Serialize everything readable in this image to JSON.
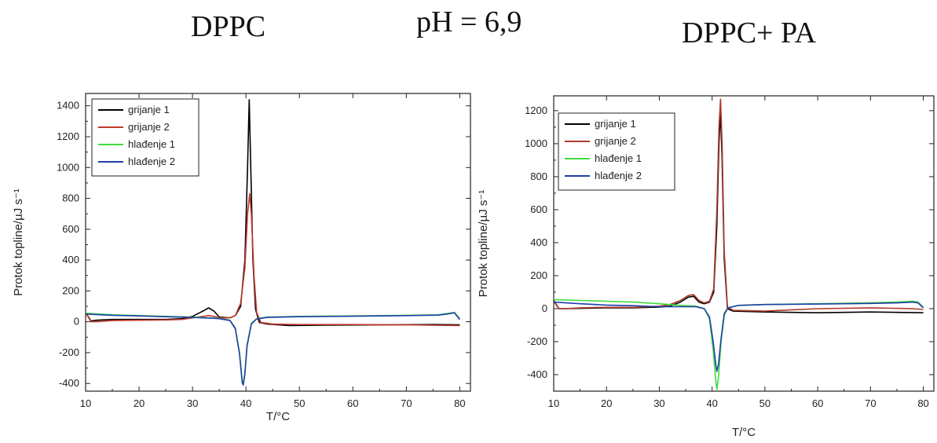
{
  "headings": {
    "left": "DPPC",
    "center": "pH = 6,9",
    "right": "DPPC+ PA"
  },
  "chart_data": [
    {
      "type": "line",
      "xlabel": "T/°C",
      "ylabel": "Protok topline/µJ s⁻¹",
      "xlim": [
        10,
        82
      ],
      "ylim": [
        -450,
        1480
      ],
      "xticks": [
        10,
        20,
        30,
        40,
        50,
        60,
        70,
        80
      ],
      "yticks": [
        -400,
        -200,
        0,
        200,
        400,
        600,
        800,
        1000,
        1200,
        1400
      ],
      "legend": "top-left",
      "series": [
        {
          "name": "grijanje 1",
          "color": "#000000",
          "points": [
            [
              10,
              60
            ],
            [
              11,
              5
            ],
            [
              12,
              10
            ],
            [
              15,
              15
            ],
            [
              20,
              15
            ],
            [
              25,
              15
            ],
            [
              28,
              20
            ],
            [
              30,
              35
            ],
            [
              32,
              70
            ],
            [
              33,
              90
            ],
            [
              34,
              70
            ],
            [
              35,
              30
            ],
            [
              37,
              25
            ],
            [
              38,
              40
            ],
            [
              39,
              100
            ],
            [
              39.8,
              400
            ],
            [
              40.3,
              1000
            ],
            [
              40.6,
              1440
            ],
            [
              40.9,
              1000
            ],
            [
              41.3,
              400
            ],
            [
              41.8,
              80
            ],
            [
              42.5,
              -5
            ],
            [
              44,
              -15
            ],
            [
              48,
              -25
            ],
            [
              55,
              -22
            ],
            [
              65,
              -20
            ],
            [
              75,
              -18
            ],
            [
              80,
              -20
            ]
          ]
        },
        {
          "name": "grijanje 2",
          "color": "#c0392b",
          "points": [
            [
              10,
              60
            ],
            [
              11,
              0
            ],
            [
              12,
              0
            ],
            [
              15,
              8
            ],
            [
              20,
              10
            ],
            [
              25,
              12
            ],
            [
              28,
              15
            ],
            [
              30,
              25
            ],
            [
              32,
              35
            ],
            [
              33,
              40
            ],
            [
              34,
              35
            ],
            [
              35,
              25
            ],
            [
              37,
              25
            ],
            [
              38,
              40
            ],
            [
              39,
              120
            ],
            [
              39.8,
              350
            ],
            [
              40.3,
              700
            ],
            [
              40.7,
              830
            ],
            [
              41,
              700
            ],
            [
              41.5,
              300
            ],
            [
              42,
              60
            ],
            [
              42.8,
              -5
            ],
            [
              45,
              -15
            ],
            [
              50,
              -18
            ],
            [
              60,
              -18
            ],
            [
              70,
              -20
            ],
            [
              80,
              -25
            ]
          ]
        },
        {
          "name": "hlađenje 1",
          "color": "#3ddc3d",
          "points": [
            [
              10,
              55
            ],
            [
              15,
              45
            ],
            [
              20,
              40
            ],
            [
              25,
              35
            ],
            [
              30,
              30
            ],
            [
              33,
              25
            ],
            [
              35,
              22
            ],
            [
              37,
              10
            ],
            [
              38,
              -40
            ],
            [
              38.8,
              -200
            ],
            [
              39.3,
              -380
            ],
            [
              39.5,
              -400
            ],
            [
              39.8,
              -330
            ],
            [
              40.2,
              -150
            ],
            [
              41,
              -10
            ],
            [
              42,
              20
            ],
            [
              44,
              30
            ],
            [
              50,
              35
            ],
            [
              60,
              38
            ],
            [
              70,
              42
            ],
            [
              76,
              45
            ],
            [
              78,
              55
            ],
            [
              79,
              60
            ],
            [
              80,
              20
            ]
          ]
        },
        {
          "name": "hlađenje 2",
          "color": "#1f3fa8",
          "points": [
            [
              10,
              50
            ],
            [
              15,
              42
            ],
            [
              20,
              38
            ],
            [
              25,
              33
            ],
            [
              30,
              28
            ],
            [
              33,
              24
            ],
            [
              35,
              20
            ],
            [
              37,
              8
            ],
            [
              38,
              -45
            ],
            [
              38.8,
              -210
            ],
            [
              39.3,
              -395
            ],
            [
              39.5,
              -410
            ],
            [
              39.8,
              -340
            ],
            [
              40.2,
              -160
            ],
            [
              41,
              -15
            ],
            [
              42,
              18
            ],
            [
              44,
              28
            ],
            [
              50,
              33
            ],
            [
              60,
              36
            ],
            [
              70,
              40
            ],
            [
              76,
              43
            ],
            [
              78,
              52
            ],
            [
              79,
              58
            ],
            [
              80,
              15
            ]
          ]
        }
      ]
    },
    {
      "type": "line",
      "xlabel": "T/°C",
      "ylabel": "Protok topline/µJ s⁻¹",
      "xlim": [
        10,
        82
      ],
      "ylim": [
        -500,
        1290
      ],
      "xticks": [
        10,
        20,
        30,
        40,
        50,
        60,
        70,
        80
      ],
      "yticks": [
        -400,
        -200,
        0,
        200,
        400,
        600,
        800,
        1000,
        1200
      ],
      "legend": "top-left",
      "series": [
        {
          "name": "grijanje 1",
          "color": "#000000",
          "points": [
            [
              10,
              50
            ],
            [
              11,
              0
            ],
            [
              12,
              0
            ],
            [
              15,
              2
            ],
            [
              20,
              5
            ],
            [
              25,
              5
            ],
            [
              30,
              10
            ],
            [
              32,
              15
            ],
            [
              34,
              40
            ],
            [
              35.5,
              70
            ],
            [
              36.5,
              75
            ],
            [
              37.5,
              40
            ],
            [
              38.5,
              30
            ],
            [
              39.5,
              40
            ],
            [
              40.3,
              100
            ],
            [
              40.9,
              500
            ],
            [
              41.3,
              1000
            ],
            [
              41.6,
              1200
            ],
            [
              41.9,
              900
            ],
            [
              42.3,
              300
            ],
            [
              42.9,
              0
            ],
            [
              44,
              -15
            ],
            [
              50,
              -20
            ],
            [
              60,
              -25
            ],
            [
              70,
              -20
            ],
            [
              80,
              -25
            ]
          ]
        },
        {
          "name": "grijanje 2",
          "color": "#b03a2e",
          "points": [
            [
              10,
              45
            ],
            [
              11,
              0
            ],
            [
              12,
              0
            ],
            [
              15,
              5
            ],
            [
              20,
              8
            ],
            [
              25,
              8
            ],
            [
              30,
              15
            ],
            [
              32,
              25
            ],
            [
              34,
              50
            ],
            [
              35.5,
              80
            ],
            [
              36.5,
              85
            ],
            [
              37.5,
              50
            ],
            [
              38.5,
              35
            ],
            [
              39.5,
              45
            ],
            [
              40.3,
              120
            ],
            [
              40.9,
              600
            ],
            [
              41.3,
              1100
            ],
            [
              41.6,
              1270
            ],
            [
              41.9,
              1000
            ],
            [
              42.3,
              350
            ],
            [
              42.9,
              10
            ],
            [
              44,
              -10
            ],
            [
              50,
              -15
            ],
            [
              60,
              0
            ],
            [
              70,
              5
            ],
            [
              78,
              0
            ],
            [
              80,
              -5
            ]
          ]
        },
        {
          "name": "hlađenje 1",
          "color": "#3ddc3d",
          "points": [
            [
              10,
              55
            ],
            [
              15,
              50
            ],
            [
              20,
              45
            ],
            [
              25,
              40
            ],
            [
              30,
              30
            ],
            [
              34,
              20
            ],
            [
              37,
              15
            ],
            [
              38.5,
              0
            ],
            [
              39.5,
              -60
            ],
            [
              40.2,
              -250
            ],
            [
              40.7,
              -440
            ],
            [
              40.9,
              -490
            ],
            [
              41.2,
              -420
            ],
            [
              41.7,
              -200
            ],
            [
              42.3,
              -40
            ],
            [
              43,
              5
            ],
            [
              45,
              20
            ],
            [
              50,
              25
            ],
            [
              60,
              30
            ],
            [
              70,
              35
            ],
            [
              75,
              40
            ],
            [
              78,
              45
            ],
            [
              79,
              40
            ],
            [
              80,
              10
            ]
          ]
        },
        {
          "name": "hlađenje 2",
          "color": "#1f3fa8",
          "points": [
            [
              10,
              40
            ],
            [
              15,
              30
            ],
            [
              20,
              22
            ],
            [
              25,
              18
            ],
            [
              30,
              12
            ],
            [
              34,
              12
            ],
            [
              37,
              12
            ],
            [
              38.5,
              0
            ],
            [
              39.5,
              -50
            ],
            [
              40.2,
              -200
            ],
            [
              40.7,
              -340
            ],
            [
              40.9,
              -380
            ],
            [
              41.2,
              -340
            ],
            [
              41.7,
              -180
            ],
            [
              42.3,
              -30
            ],
            [
              43,
              5
            ],
            [
              45,
              20
            ],
            [
              50,
              25
            ],
            [
              60,
              28
            ],
            [
              70,
              32
            ],
            [
              75,
              35
            ],
            [
              78,
              40
            ],
            [
              79,
              35
            ],
            [
              80,
              5
            ]
          ]
        }
      ]
    }
  ]
}
